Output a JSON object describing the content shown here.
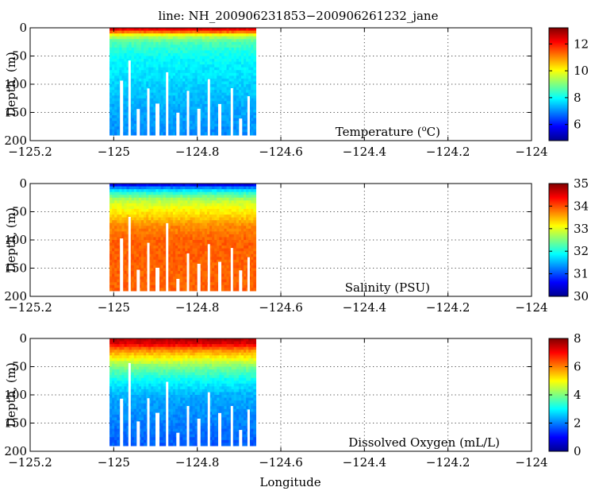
{
  "title": "line: NH_200906231853−200906261232_jane",
  "xlabel": "Longitude",
  "ylabel": "Depth, (m)",
  "chart_data": [
    {
      "type": "heatmap",
      "variable": "Temperature",
      "label_main": "Temperature (",
      "label_sup": "o",
      "label_unit": "C)",
      "x_ticks": [
        "−125.2",
        "−125",
        "−124.8",
        "−124.6",
        "−124.4",
        "−124.2",
        "−124"
      ],
      "x_values": [
        -125.2,
        -125.0,
        -124.8,
        -124.6,
        -124.4,
        -124.2,
        -124.0
      ],
      "xlim": [
        -125.2,
        -124.0
      ],
      "y_ticks": [
        "0",
        "50",
        "100",
        "150",
        "200"
      ],
      "y_values": [
        0,
        50,
        100,
        150,
        200
      ],
      "ylim": [
        0,
        200
      ],
      "data_extent": {
        "lon": [
          -125.01,
          -124.66
        ],
        "depth": [
          0,
          190
        ]
      },
      "profile": [
        {
          "depth": 0,
          "value": 12.5
        },
        {
          "depth": 5,
          "value": 12.0
        },
        {
          "depth": 10,
          "value": 10.5
        },
        {
          "depth": 15,
          "value": 9.5
        },
        {
          "depth": 25,
          "value": 8.6
        },
        {
          "depth": 50,
          "value": 8.0
        },
        {
          "depth": 100,
          "value": 7.6
        },
        {
          "depth": 150,
          "value": 7.2
        },
        {
          "depth": 190,
          "value": 7.0
        }
      ],
      "colorbar": {
        "ticks": [
          "6",
          "8",
          "10",
          "12"
        ],
        "tick_values": [
          6,
          8,
          10,
          12
        ],
        "range": [
          4.8,
          13.2
        ]
      }
    },
    {
      "type": "heatmap",
      "variable": "Salinity",
      "label_main": "Salinity (PSU)",
      "label_sup": "",
      "label_unit": "",
      "x_ticks": [
        "−125.2",
        "−125",
        "−124.8",
        "−124.6",
        "−124.4",
        "−124.2",
        "−124"
      ],
      "x_values": [
        -125.2,
        -125.0,
        -124.8,
        -124.6,
        -124.4,
        -124.2,
        -124.0
      ],
      "xlim": [
        -125.2,
        -124.0
      ],
      "y_ticks": [
        "0",
        "50",
        "100",
        "150",
        "200"
      ],
      "y_values": [
        0,
        50,
        100,
        150,
        200
      ],
      "ylim": [
        0,
        200
      ],
      "data_extent": {
        "lon": [
          -125.01,
          -124.66
        ],
        "depth": [
          0,
          190
        ]
      },
      "profile": [
        {
          "depth": 0,
          "value": 30.2
        },
        {
          "depth": 5,
          "value": 31.0
        },
        {
          "depth": 15,
          "value": 32.0
        },
        {
          "depth": 30,
          "value": 32.8
        },
        {
          "depth": 50,
          "value": 33.2
        },
        {
          "depth": 75,
          "value": 33.7
        },
        {
          "depth": 100,
          "value": 33.9
        },
        {
          "depth": 190,
          "value": 33.9
        }
      ],
      "colorbar": {
        "ticks": [
          "30",
          "31",
          "32",
          "33",
          "34",
          "35"
        ],
        "tick_values": [
          30,
          31,
          32,
          33,
          34,
          35
        ],
        "range": [
          30,
          35
        ]
      }
    },
    {
      "type": "heatmap",
      "variable": "Dissolved Oxygen",
      "label_main": "Dissolved Oxygen (mL/L)",
      "label_sup": "",
      "label_unit": "",
      "x_ticks": [
        "−125.2",
        "−125",
        "−124.8",
        "−124.6",
        "−124.4",
        "−124.2",
        "−124"
      ],
      "x_values": [
        -125.2,
        -125.0,
        -124.8,
        -124.6,
        -124.4,
        -124.2,
        -124.0
      ],
      "xlim": [
        -125.2,
        -124.0
      ],
      "y_ticks": [
        "0",
        "50",
        "100",
        "150",
        "200"
      ],
      "y_values": [
        0,
        50,
        100,
        150,
        200
      ],
      "ylim": [
        0,
        200
      ],
      "data_extent": {
        "lon": [
          -125.01,
          -124.66
        ],
        "depth": [
          0,
          190
        ]
      },
      "profile": [
        {
          "depth": 0,
          "value": 7.6
        },
        {
          "depth": 10,
          "value": 7.2
        },
        {
          "depth": 20,
          "value": 6.0
        },
        {
          "depth": 35,
          "value": 5.0
        },
        {
          "depth": 50,
          "value": 4.0
        },
        {
          "depth": 75,
          "value": 3.0
        },
        {
          "depth": 100,
          "value": 2.4
        },
        {
          "depth": 150,
          "value": 2.0
        },
        {
          "depth": 190,
          "value": 1.7
        }
      ],
      "colorbar": {
        "ticks": [
          "0",
          "2",
          "4",
          "6",
          "8"
        ],
        "tick_values": [
          0,
          2,
          4,
          6,
          8
        ],
        "range": [
          0,
          8
        ]
      }
    }
  ]
}
